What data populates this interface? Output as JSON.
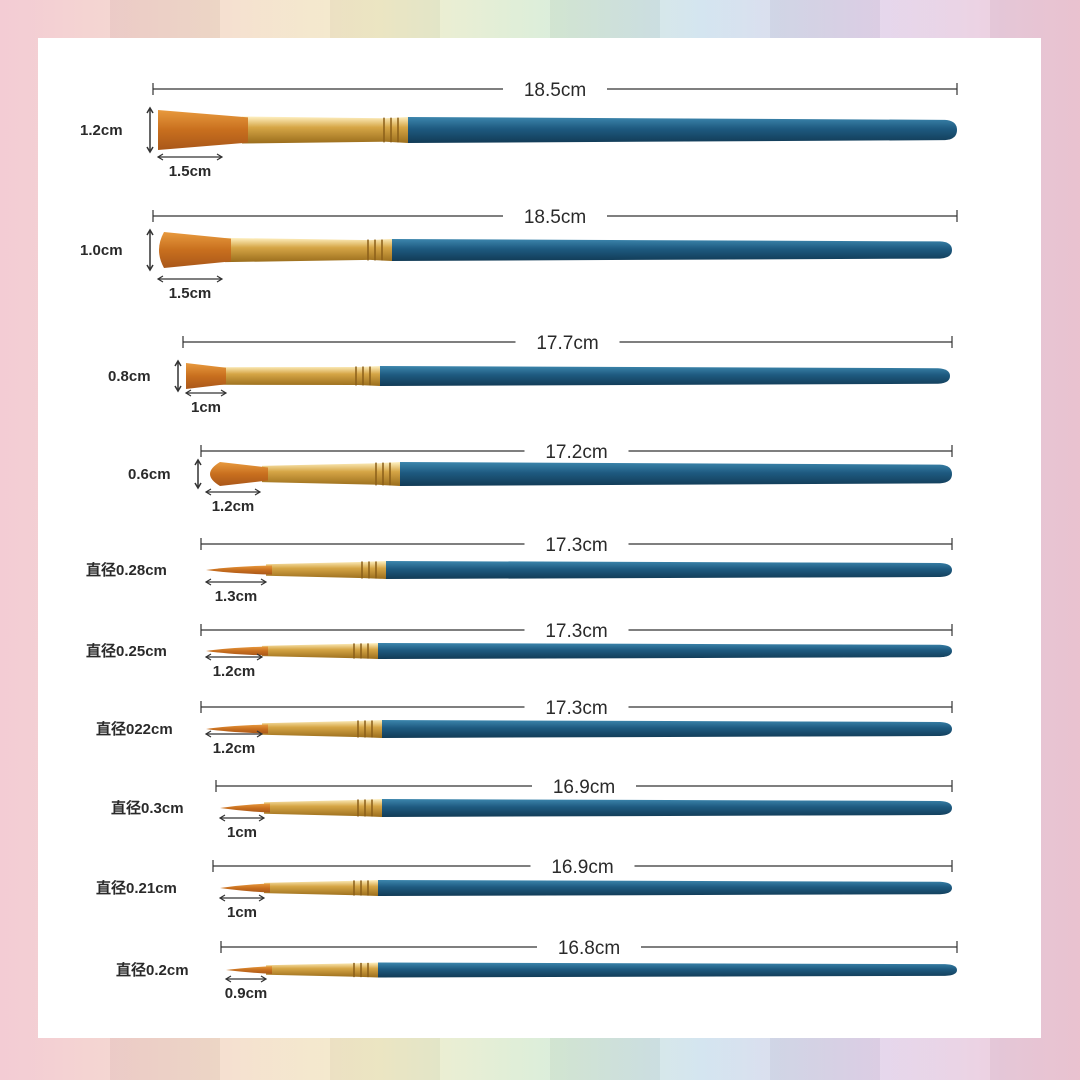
{
  "brushes": [
    {
      "type": "flat",
      "length": "18.5cm",
      "width_label": "1.2cm",
      "tip_label": "1.5cm"
    },
    {
      "type": "filbert-flat",
      "length": "18.5cm",
      "width_label": "1.0cm",
      "tip_label": "1.5cm"
    },
    {
      "type": "flat",
      "length": "17.7cm",
      "width_label": "0.8cm",
      "tip_label": "1cm"
    },
    {
      "type": "filbert",
      "length": "17.2cm",
      "width_label": "0.6cm",
      "tip_label": "1.2cm"
    },
    {
      "type": "round",
      "length": "17.3cm",
      "width_label": "直径0.28cm",
      "tip_label": "1.3cm"
    },
    {
      "type": "round",
      "length": "17.3cm",
      "width_label": "直径0.25cm",
      "tip_label": "1.2cm"
    },
    {
      "type": "round",
      "length": "17.3cm",
      "width_label": "直径022cm",
      "tip_label": "1.2cm"
    },
    {
      "type": "round",
      "length": "16.9cm",
      "width_label": "直径0.3cm",
      "tip_label": "1cm"
    },
    {
      "type": "round",
      "length": "16.9cm",
      "width_label": "直径0.21cm",
      "tip_label": "1cm"
    },
    {
      "type": "round",
      "length": "16.8cm",
      "width_label": "直径0.2cm",
      "tip_label": "0.9cm"
    }
  ],
  "colors": {
    "handle": "#1e5a80",
    "handle_highlight": "#3c86ad",
    "ferrule": "#d6a646",
    "bristle": "#d9822b",
    "measure_line": "#333333"
  }
}
